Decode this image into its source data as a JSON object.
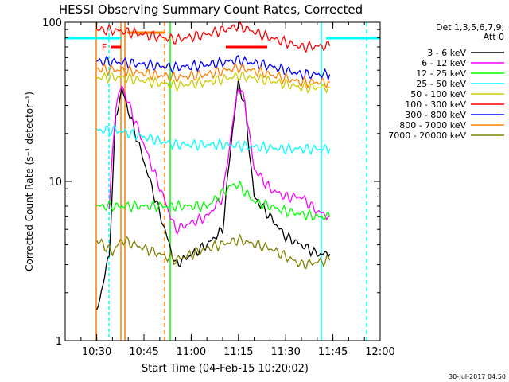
{
  "chart_data": {
    "type": "line",
    "title": "HESSI Observing Summary Count Rates, Corrected",
    "xlabel": "Start Time (04-Feb-15 10:20:02)",
    "ylabel": "Corrected Count Rate (s⁻¹ detector⁻¹)",
    "yscale": "log",
    "ylim": [
      1,
      100
    ],
    "xlim": [
      "10:20",
      "12:00"
    ],
    "x_ticks": [
      "10:30",
      "10:45",
      "11:00",
      "11:15",
      "11:30",
      "11:45",
      "12:00"
    ],
    "y_ticks": [
      "1",
      "10",
      "100"
    ],
    "timestamp": "30-Jul-2017 04:50",
    "legend": {
      "header_line1": "Det 1,3,5,6,7,9,",
      "header_line2": "Att 0",
      "placement": "top-right outside"
    },
    "annotations": {
      "flag_text": "F"
    },
    "series": [
      {
        "name": "3 - 6 keV",
        "color": "#000000",
        "x": [
          "10:30",
          "10:34",
          "10:36",
          "10:38",
          "10:55",
          "11:05",
          "11:10",
          "11:13",
          "11:15",
          "11:17",
          "11:20",
          "11:25",
          "11:30",
          "11:35",
          "11:40",
          "11:44"
        ],
        "y": [
          1.5,
          3.5,
          25,
          38,
          3,
          4,
          5,
          20,
          42,
          30,
          8,
          6,
          4.5,
          4,
          3.5,
          3.5
        ]
      },
      {
        "name": "6 - 12 keV",
        "color": "#ff00ff",
        "x": [
          "10:34",
          "10:36",
          "10:38",
          "10:55",
          "11:05",
          "11:10",
          "11:13",
          "11:15",
          "11:17",
          "11:20",
          "11:25",
          "11:30",
          "11:35",
          "11:40",
          "11:44"
        ],
        "y": [
          7,
          30,
          40,
          5,
          6,
          8,
          22,
          40,
          32,
          12,
          9,
          8,
          8,
          6.5,
          6
        ]
      },
      {
        "name": "12 - 25 keV",
        "color": "#00ff00",
        "x": [
          "10:30",
          "10:35",
          "10:38",
          "10:55",
          "11:05",
          "11:13",
          "11:15",
          "11:20",
          "11:30",
          "11:40",
          "11:44"
        ],
        "y": [
          7,
          7,
          7,
          7,
          7,
          9.5,
          9.5,
          7.5,
          6.5,
          6,
          6
        ]
      },
      {
        "name": "25 - 50 keV",
        "color": "#00ffff",
        "x": [
          "10:30",
          "10:36",
          "10:55",
          "11:10",
          "11:20",
          "11:30",
          "11:44"
        ],
        "y": [
          21,
          21,
          17,
          17,
          16.5,
          16,
          16
        ]
      },
      {
        "name": "50 - 100 keV",
        "color": "#cccc00",
        "x": [
          "10:30",
          "10:38",
          "10:55",
          "11:05",
          "11:15",
          "11:25",
          "11:35",
          "11:44"
        ],
        "y": [
          45,
          45,
          40,
          42,
          46,
          43,
          39,
          39
        ]
      },
      {
        "name": "100 - 300 keV",
        "color": "#ff0000",
        "x": [
          "10:30",
          "10:38",
          "10:55",
          "11:05",
          "11:15",
          "11:25",
          "11:35",
          "11:44"
        ],
        "y": [
          90,
          88,
          78,
          84,
          95,
          80,
          70,
          71
        ]
      },
      {
        "name": "300 - 800 keV",
        "color": "#0000ff",
        "x": [
          "10:30",
          "10:38",
          "10:55",
          "11:05",
          "11:15",
          "11:25",
          "11:35",
          "11:44"
        ],
        "y": [
          57,
          56,
          52,
          54,
          58,
          53,
          47,
          47
        ]
      },
      {
        "name": "800 - 7000 keV",
        "color": "#ff8000",
        "x": [
          "10:30",
          "10:38",
          "10:55",
          "11:05",
          "11:15",
          "11:25",
          "11:35",
          "11:44"
        ],
        "y": [
          51,
          50,
          45,
          47,
          52,
          47,
          42,
          42
        ]
      },
      {
        "name": "7000 - 20000 keV",
        "color": "#808000",
        "x": [
          "10:30",
          "10:35",
          "10:38",
          "10:55",
          "11:05",
          "11:15",
          "11:25",
          "11:35",
          "11:44"
        ],
        "y": [
          4.3,
          3.6,
          4.3,
          3.2,
          3.8,
          4.3,
          3.8,
          3.0,
          3.2
        ]
      }
    ]
  }
}
